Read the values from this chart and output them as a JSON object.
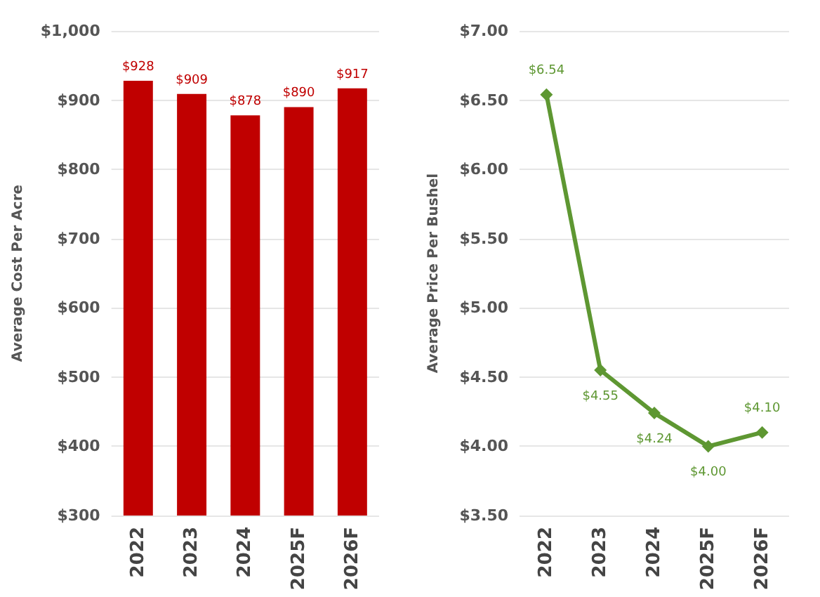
{
  "chart_data": [
    {
      "type": "bar",
      "ylabel": "Average Cost Per Acre",
      "categories": [
        "2022",
        "2023",
        "2024",
        "2025F",
        "2026F"
      ],
      "series": [
        {
          "color": "#c00000",
          "values": [
            928,
            909,
            878,
            890,
            917
          ],
          "value_labels": [
            "$928",
            "$909",
            "$878",
            "$890",
            "$917"
          ]
        }
      ],
      "ylim": [
        300,
        1000
      ],
      "yticks": [
        {
          "value": 300,
          "label": "$300"
        },
        {
          "value": 400,
          "label": "$400"
        },
        {
          "value": 500,
          "label": "$500"
        },
        {
          "value": 600,
          "label": "$600"
        },
        {
          "value": 700,
          "label": "$700"
        },
        {
          "value": 800,
          "label": "$800"
        },
        {
          "value": 900,
          "label": "$900"
        },
        {
          "value": 1000,
          "label": "$1,000"
        }
      ],
      "grid": "y"
    },
    {
      "type": "line",
      "ylabel": "Average Price Per Bushel",
      "categories": [
        "2022",
        "2023",
        "2024",
        "2025F",
        "2026F"
      ],
      "series": [
        {
          "color": "#5e9732",
          "values": [
            6.54,
            4.55,
            4.24,
            4.0,
            4.1
          ],
          "value_labels": [
            "$6.54",
            "$4.55",
            "$4.24",
            "$4.00",
            "$4.10"
          ]
        }
      ],
      "ylim": [
        3.5,
        7
      ],
      "yticks": [
        {
          "value": 3.5,
          "label": "$3.50"
        },
        {
          "value": 4,
          "label": "$4.00"
        },
        {
          "value": 4.5,
          "label": "$4.50"
        },
        {
          "value": 5,
          "label": "$5.00"
        },
        {
          "value": 5.5,
          "label": "$5.50"
        },
        {
          "value": 6,
          "label": "$6.00"
        },
        {
          "value": 6.5,
          "label": "$6.50"
        },
        {
          "value": 7,
          "label": "$7.00"
        }
      ],
      "grid": "y",
      "marker": "diamond",
      "line_style": "solid"
    }
  ]
}
